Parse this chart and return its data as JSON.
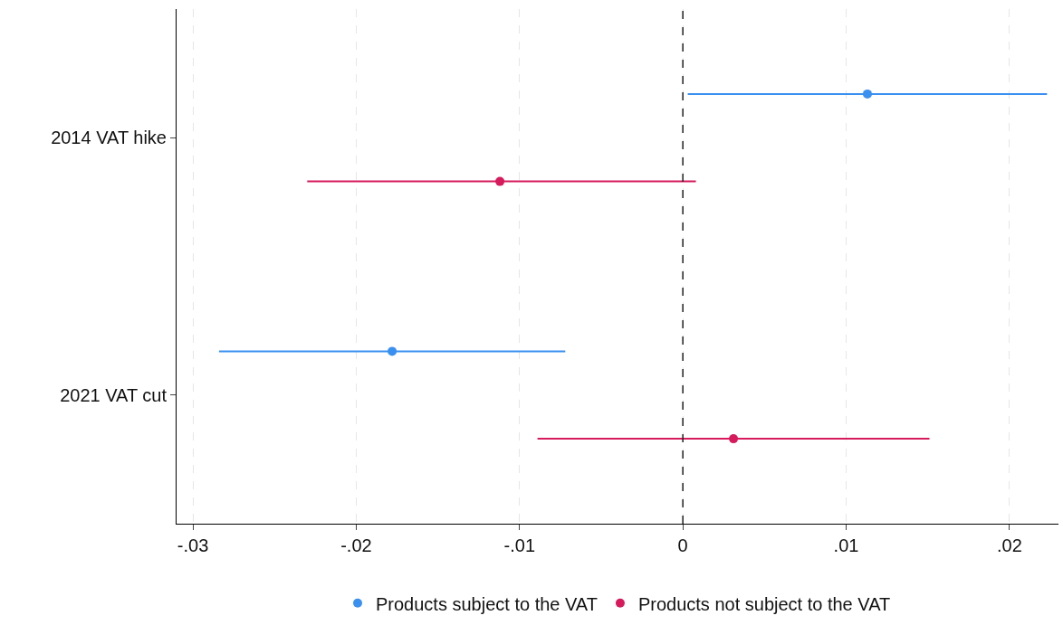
{
  "chart_data": {
    "type": "scatter",
    "orientation": "horizontal",
    "categories": [
      "2014 VAT hike",
      "2021 VAT cut"
    ],
    "series": [
      {
        "name": "Products subject to the VAT",
        "color": "#3a90f0",
        "values": [
          0.0113,
          -0.0178
        ],
        "errors": [
          [
            0.0003,
            0.0223
          ],
          [
            -0.0284,
            -0.0072
          ]
        ]
      },
      {
        "name": "Products not subject to the VAT",
        "color": "#d61a5c",
        "values": [
          -0.0112,
          0.0031
        ],
        "errors": [
          [
            -0.023,
            0.0008
          ],
          [
            -0.0089,
            0.0151
          ]
        ]
      }
    ],
    "xlim": [
      -0.031,
      0.023
    ],
    "xticks": [
      {
        "value": -0.03,
        "label": "-.03"
      },
      {
        "value": -0.02,
        "label": "-.02"
      },
      {
        "value": -0.01,
        "label": "-.01"
      },
      0,
      {
        "value": 0.01,
        "label": ".01"
      },
      {
        "value": 0.02,
        "label": ".02"
      }
    ],
    "ref_lines": [
      {
        "axis": "x",
        "value": 0,
        "color": "#222222",
        "line_style": "dashed"
      }
    ],
    "grid": "x",
    "legend": "bottom",
    "marker": "circle"
  }
}
